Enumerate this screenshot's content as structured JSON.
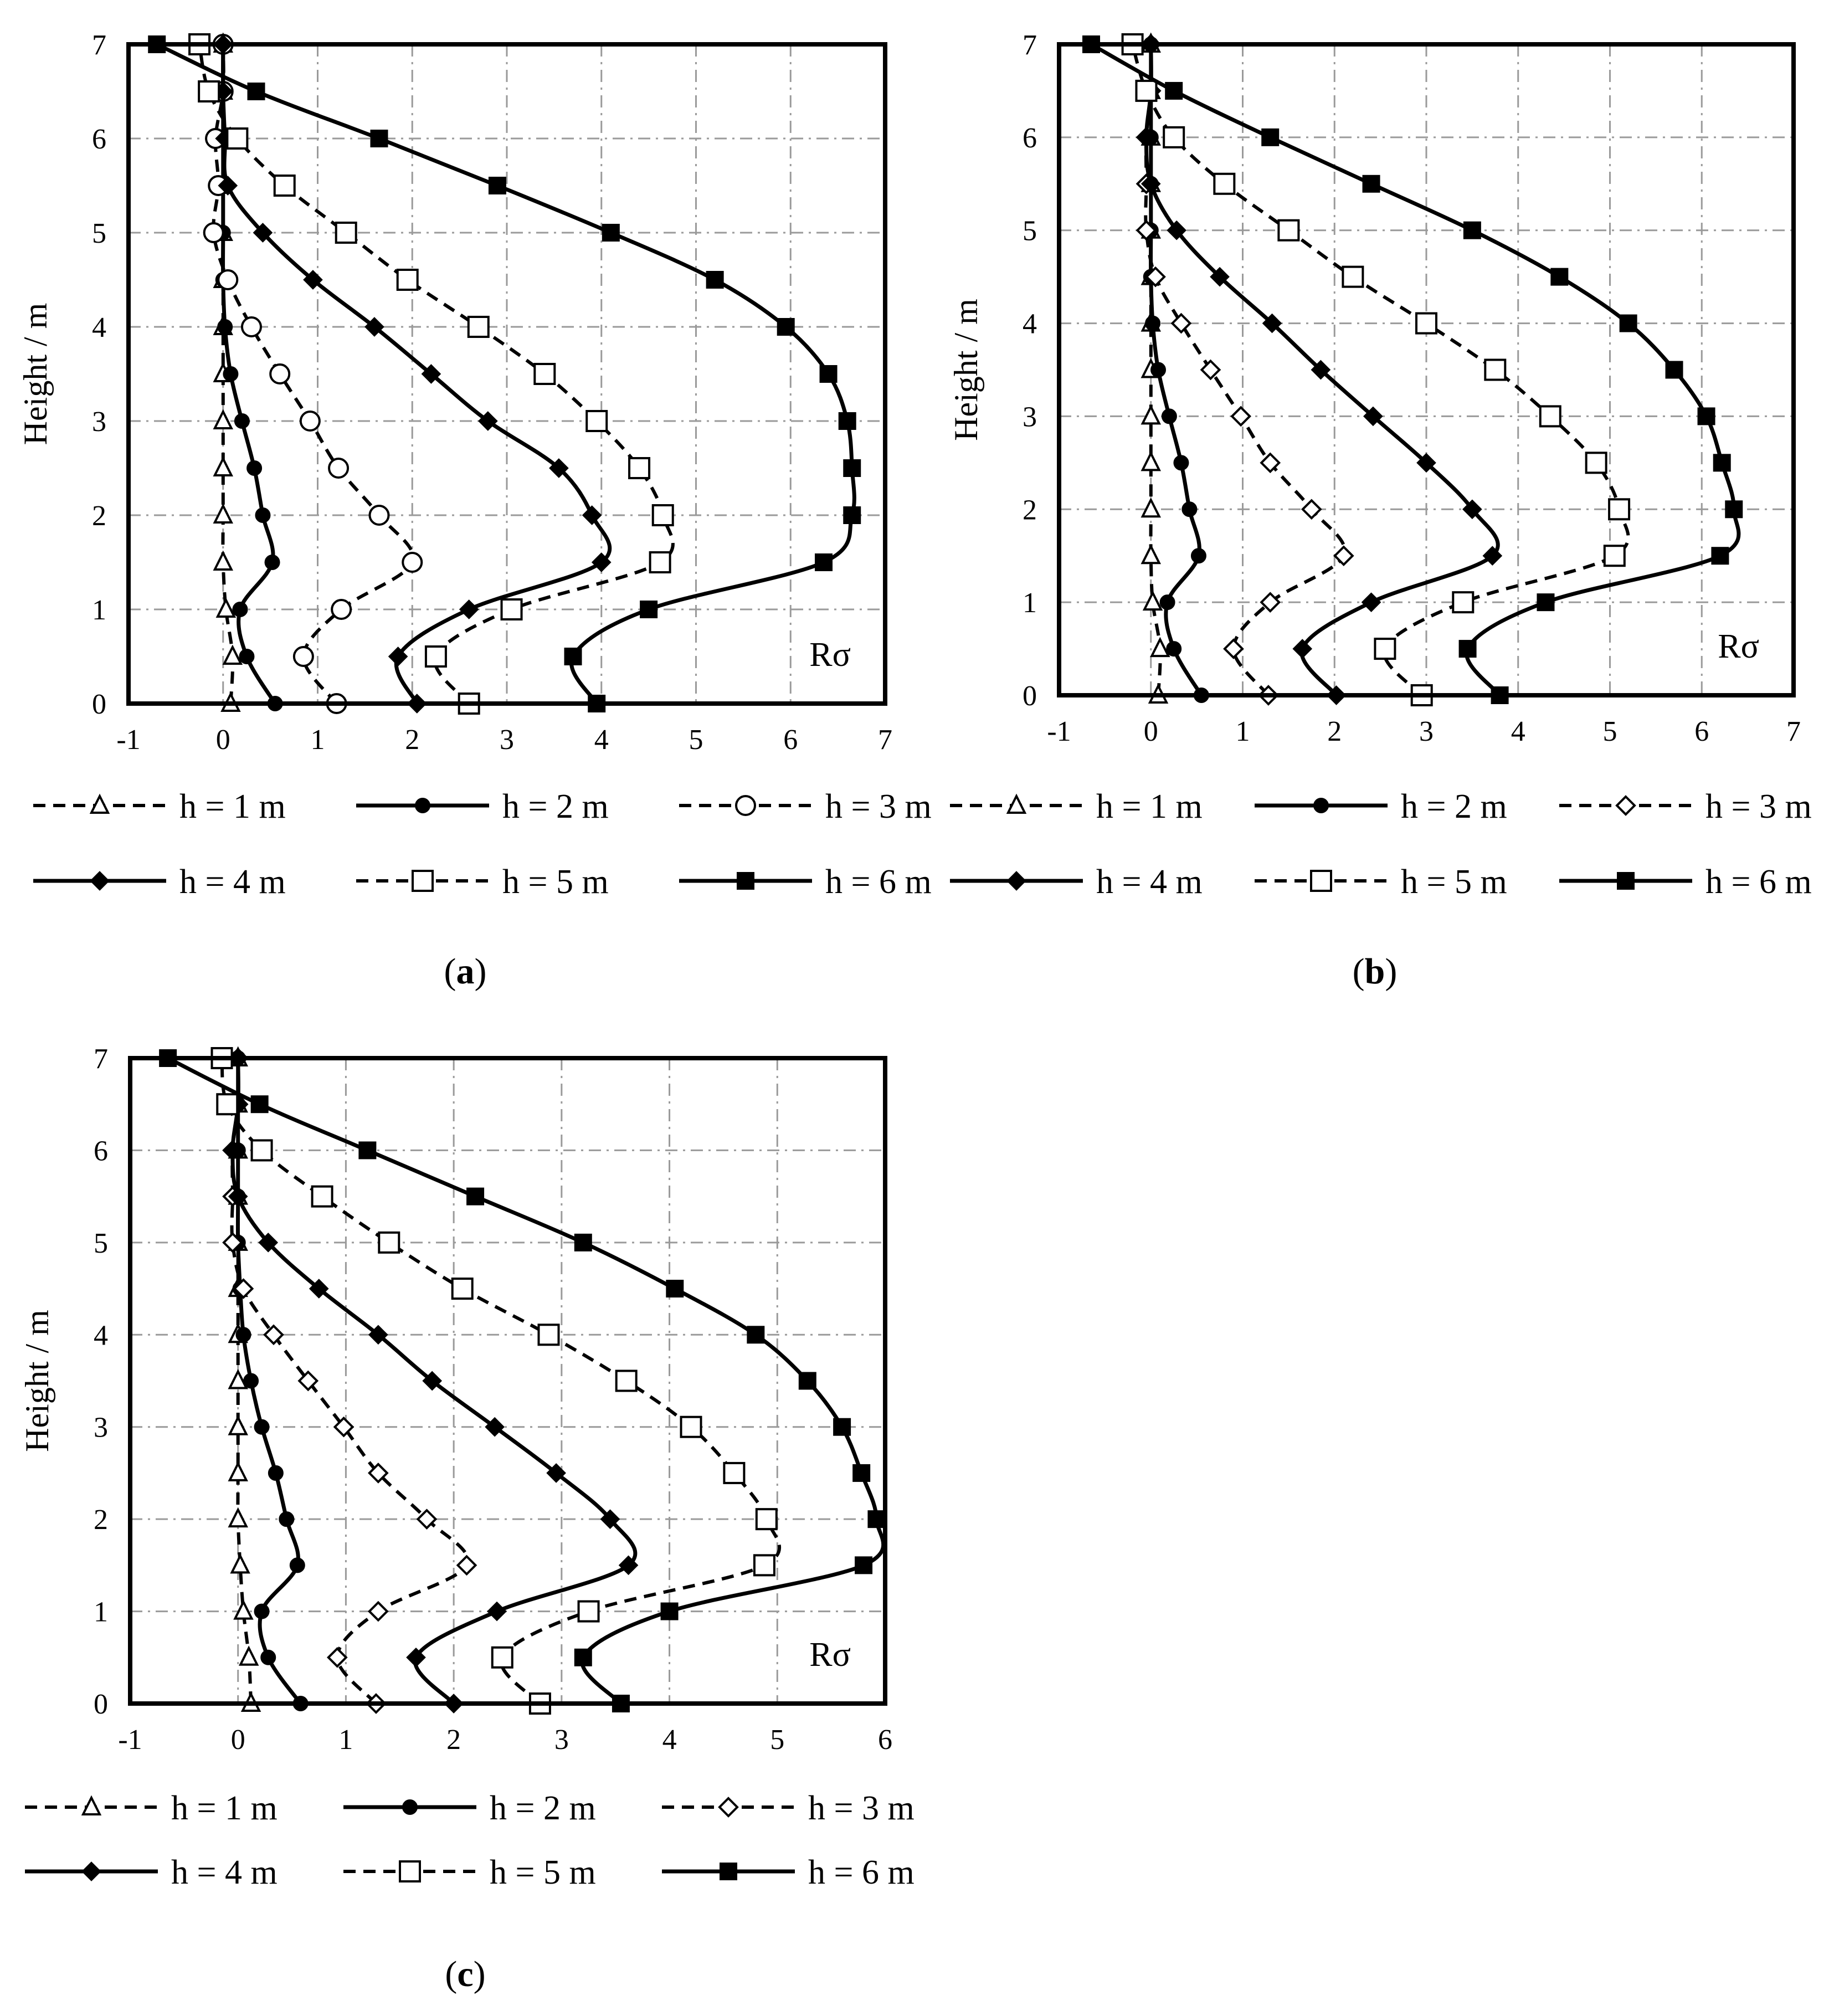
{
  "figure": {
    "panels": [
      {
        "caption_letter": "a",
        "annotation": "Rσ",
        "ylabel": "Height / m",
        "legend_labels": [
          "h = 1 m",
          "h = 2 m",
          "h = 3 m",
          "h = 4 m",
          "h = 5 m",
          "h = 6 m"
        ],
        "markers": [
          "triangle-open",
          "circle-filled",
          "circle-open",
          "diamond-filled",
          "square-open",
          "square-filled"
        ],
        "x_ticks": [
          "-1",
          "0",
          "1",
          "2",
          "3",
          "4",
          "5",
          "6",
          "7"
        ],
        "y_ticks": [
          "0",
          "1",
          "2",
          "3",
          "4",
          "5",
          "6",
          "7"
        ]
      },
      {
        "caption_letter": "b",
        "annotation": "Rσ",
        "ylabel": "Height / m",
        "legend_labels": [
          "h = 1 m",
          "h = 2 m",
          "h = 3 m",
          "h = 4 m",
          "h = 5 m",
          "h = 6 m"
        ],
        "markers": [
          "triangle-open",
          "circle-filled",
          "diamond-open",
          "diamond-filled",
          "square-open",
          "square-filled"
        ],
        "x_ticks": [
          "-1",
          "0",
          "1",
          "2",
          "3",
          "4",
          "5",
          "6",
          "7"
        ],
        "y_ticks": [
          "0",
          "1",
          "2",
          "3",
          "4",
          "5",
          "6",
          "7"
        ]
      },
      {
        "caption_letter": "c",
        "annotation": "Rσ",
        "ylabel": "Height / m",
        "legend_labels": [
          "h = 1 m",
          "h = 2 m",
          "h = 3 m",
          "h = 4 m",
          "h = 5 m",
          "h = 6 m"
        ],
        "markers": [
          "triangle-open",
          "circle-filled",
          "diamond-open",
          "diamond-filled",
          "square-open",
          "square-filled"
        ],
        "x_ticks": [
          "-1",
          "0",
          "1",
          "2",
          "3",
          "4",
          "5",
          "6"
        ],
        "y_ticks": [
          "0",
          "1",
          "2",
          "3",
          "4",
          "5",
          "6",
          "7"
        ]
      }
    ]
  },
  "chart_data": [
    {
      "type": "line",
      "xlim": [
        -1,
        7
      ],
      "ylim": [
        0,
        7
      ],
      "grid": true,
      "legend_position": "bottom",
      "annotation": "Rσ",
      "ylabel": "Height / m",
      "y": [
        0,
        0.5,
        1,
        1.5,
        2,
        2.5,
        3,
        3.5,
        4,
        4.5,
        5,
        5.5,
        6,
        6.5,
        7
      ],
      "series": [
        {
          "name": "h = 1 m",
          "style": "dashed",
          "marker": "triangle-open",
          "values": [
            0.08,
            0.1,
            0.03,
            0.0,
            0.0,
            0.0,
            0.0,
            0.0,
            0.0,
            0.0,
            0.0,
            0.0,
            0.0,
            0.0,
            0.0
          ]
        },
        {
          "name": "h = 2 m",
          "style": "solid",
          "marker": "circle-filled",
          "values": [
            0.55,
            0.25,
            0.18,
            0.52,
            0.42,
            0.33,
            0.2,
            0.08,
            0.02,
            0.0,
            0.0,
            0.0,
            0.0,
            0.0,
            0.0
          ]
        },
        {
          "name": "h = 3 m",
          "style": "dashed",
          "marker": "circle-open",
          "values": [
            1.2,
            0.85,
            1.25,
            2.0,
            1.65,
            1.22,
            0.92,
            0.6,
            0.3,
            0.05,
            -0.1,
            -0.05,
            -0.08,
            0.0,
            0.0
          ]
        },
        {
          "name": "h = 4 m",
          "style": "solid",
          "marker": "diamond-filled",
          "values": [
            2.05,
            1.85,
            2.6,
            4.0,
            3.9,
            3.55,
            2.8,
            2.2,
            1.6,
            0.95,
            0.42,
            0.05,
            0.02,
            0.0,
            0.0
          ]
        },
        {
          "name": "h = 5 m",
          "style": "dashed",
          "marker": "square-open",
          "values": [
            2.6,
            2.25,
            3.05,
            4.62,
            4.65,
            4.4,
            3.95,
            3.4,
            2.7,
            1.95,
            1.3,
            0.65,
            0.15,
            -0.15,
            -0.25
          ]
        },
        {
          "name": "h = 6 m",
          "style": "solid",
          "marker": "square-filled",
          "values": [
            3.95,
            3.7,
            4.5,
            6.35,
            6.65,
            6.65,
            6.6,
            6.4,
            5.95,
            5.2,
            4.1,
            2.9,
            1.65,
            0.35,
            -0.7
          ]
        }
      ]
    },
    {
      "type": "line",
      "xlim": [
        -1,
        7
      ],
      "ylim": [
        0,
        7
      ],
      "grid": true,
      "legend_position": "bottom",
      "annotation": "Rσ",
      "ylabel": "Height / m",
      "y": [
        0,
        0.5,
        1,
        1.5,
        2,
        2.5,
        3,
        3.5,
        4,
        4.5,
        5,
        5.5,
        6,
        6.5,
        7
      ],
      "series": [
        {
          "name": "h = 1 m",
          "style": "dashed",
          "marker": "triangle-open",
          "values": [
            0.08,
            0.1,
            0.02,
            0.0,
            0.0,
            0.0,
            0.0,
            0.0,
            0.0,
            0.0,
            0.0,
            0.0,
            0.0,
            0.0,
            0.0
          ]
        },
        {
          "name": "h = 2 m",
          "style": "solid",
          "marker": "circle-filled",
          "values": [
            0.55,
            0.25,
            0.18,
            0.52,
            0.42,
            0.33,
            0.2,
            0.08,
            0.02,
            0.0,
            0.0,
            0.0,
            0.0,
            0.0,
            0.0
          ]
        },
        {
          "name": "h = 3 m",
          "style": "dashed",
          "marker": "diamond-open",
          "values": [
            1.28,
            0.9,
            1.3,
            2.1,
            1.75,
            1.3,
            0.98,
            0.65,
            0.33,
            0.05,
            -0.05,
            -0.05,
            -0.05,
            0.0,
            0.0
          ]
        },
        {
          "name": "h = 4 m",
          "style": "solid",
          "marker": "diamond-filled",
          "values": [
            2.02,
            1.65,
            2.4,
            3.72,
            3.5,
            3.0,
            2.42,
            1.85,
            1.32,
            0.75,
            0.28,
            0.0,
            -0.05,
            0.0,
            0.0
          ]
        },
        {
          "name": "h = 5 m",
          "style": "dashed",
          "marker": "square-open",
          "values": [
            2.95,
            2.55,
            3.4,
            5.05,
            5.1,
            4.85,
            4.35,
            3.75,
            3.0,
            2.2,
            1.5,
            0.8,
            0.25,
            -0.05,
            -0.2
          ]
        },
        {
          "name": "h = 6 m",
          "style": "solid",
          "marker": "square-filled",
          "values": [
            3.8,
            3.45,
            4.3,
            6.2,
            6.35,
            6.22,
            6.05,
            5.7,
            5.2,
            4.45,
            3.5,
            2.4,
            1.3,
            0.25,
            -0.65
          ]
        }
      ]
    },
    {
      "type": "line",
      "xlim": [
        -1,
        6
      ],
      "ylim": [
        0,
        7
      ],
      "grid": true,
      "legend_position": "bottom",
      "annotation": "Rσ",
      "ylabel": "Height / m",
      "y": [
        0,
        0.5,
        1,
        1.5,
        2,
        2.5,
        3,
        3.5,
        4,
        4.5,
        5,
        5.5,
        6,
        6.5,
        7
      ],
      "series": [
        {
          "name": "h = 1 m",
          "style": "dashed",
          "marker": "triangle-open",
          "values": [
            0.12,
            0.1,
            0.05,
            0.02,
            0.0,
            0.0,
            0.0,
            0.0,
            0.0,
            0.0,
            0.0,
            0.0,
            0.0,
            0.0,
            0.0
          ]
        },
        {
          "name": "h = 2 m",
          "style": "solid",
          "marker": "circle-filled",
          "values": [
            0.58,
            0.28,
            0.22,
            0.55,
            0.45,
            0.35,
            0.22,
            0.12,
            0.05,
            0.02,
            0.0,
            0.0,
            0.0,
            0.0,
            0.0
          ]
        },
        {
          "name": "h = 3 m",
          "style": "dashed",
          "marker": "diamond-open",
          "values": [
            1.28,
            0.92,
            1.3,
            2.12,
            1.75,
            1.3,
            0.98,
            0.65,
            0.33,
            0.05,
            -0.05,
            -0.05,
            -0.05,
            0.0,
            0.0
          ]
        },
        {
          "name": "h = 4 m",
          "style": "solid",
          "marker": "diamond-filled",
          "values": [
            2.0,
            1.65,
            2.4,
            3.62,
            3.45,
            2.95,
            2.38,
            1.8,
            1.3,
            0.75,
            0.28,
            0.0,
            -0.05,
            0.0,
            0.0
          ]
        },
        {
          "name": "h = 5 m",
          "style": "dashed",
          "marker": "square-open",
          "values": [
            2.8,
            2.45,
            3.25,
            4.88,
            4.9,
            4.6,
            4.2,
            3.6,
            2.88,
            2.08,
            1.4,
            0.78,
            0.22,
            -0.1,
            -0.15
          ]
        },
        {
          "name": "h = 6 m",
          "style": "solid",
          "marker": "square-filled",
          "values": [
            3.55,
            3.2,
            4.0,
            5.8,
            5.92,
            5.78,
            5.6,
            5.28,
            4.8,
            4.05,
            3.2,
            2.2,
            1.2,
            0.2,
            -0.65
          ]
        }
      ]
    }
  ]
}
